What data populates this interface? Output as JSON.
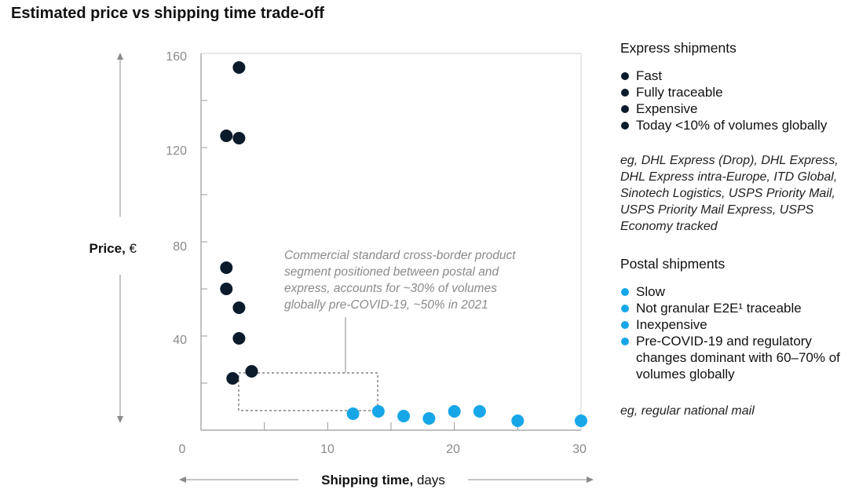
{
  "chart_data": {
    "type": "scatter",
    "title": "Estimated price vs shipping time trade-off",
    "ylabel_bold": "Price,",
    "ylabel_unit": "€",
    "xlabel_bold": "Shipping time,",
    "xlabel_unit": "days",
    "xlim": [
      0,
      30
    ],
    "ylim": [
      0,
      160
    ],
    "x_ticks": [
      "0",
      "10",
      "20",
      "30"
    ],
    "y_ticks": [
      "160",
      "120",
      "80",
      "40"
    ],
    "annotation": [
      "Commercial standard cross-border product",
      "segment positioned between postal and",
      "express, accounts for ~30% of volumes",
      "globally pre-COVID-19, ~50% in 2021"
    ],
    "series": [
      {
        "name": "Express shipments",
        "color": "#0b1b2b",
        "points": [
          {
            "x": 3,
            "y": 154
          },
          {
            "x": 2,
            "y": 125
          },
          {
            "x": 3,
            "y": 124
          },
          {
            "x": 2,
            "y": 69
          },
          {
            "x": 2,
            "y": 60
          },
          {
            "x": 3,
            "y": 52
          },
          {
            "x": 3,
            "y": 39
          },
          {
            "x": 4,
            "y": 25
          },
          {
            "x": 2.5,
            "y": 22
          }
        ]
      },
      {
        "name": "Postal shipments",
        "color": "#17a7e8",
        "points": [
          {
            "x": 12,
            "y": 7
          },
          {
            "x": 14,
            "y": 8
          },
          {
            "x": 16,
            "y": 6
          },
          {
            "x": 18,
            "y": 5
          },
          {
            "x": 20,
            "y": 8
          },
          {
            "x": 22,
            "y": 8
          },
          {
            "x": 25,
            "y": 4
          },
          {
            "x": 30,
            "y": 4
          }
        ]
      }
    ]
  },
  "legend": {
    "express": {
      "heading": "Express shipments",
      "items": [
        "Fast",
        "Fully traceable",
        "Expensive",
        "Today <10% of volumes globally"
      ],
      "examples": "eg, DHL Express (Drop), DHL Express, DHL Express intra-Europe, ITD Global, Sinotech Logistics, USPS Priority Mail, USPS Priority Mail Express, USPS Economy tracked"
    },
    "postal": {
      "heading": "Postal shipments",
      "items": [
        "Slow",
        "Not granular E2E¹ traceable",
        "Inexpensive",
        "Pre-COVID-19 and regulatory changes dominant with 60–70% of volumes globally"
      ],
      "examples": "eg, regular national mail"
    }
  }
}
